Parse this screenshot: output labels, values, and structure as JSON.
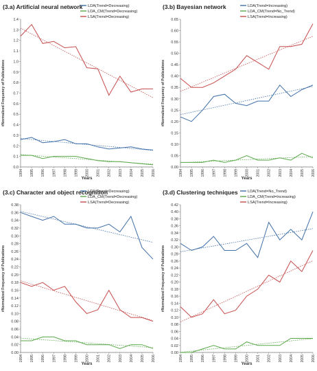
{
  "chart_data": [
    {
      "type": "line",
      "title": "(3.a) Artificial neural network",
      "xlabel": "Years",
      "ylabel": "#Normalized Frequency of Publications",
      "x": [
        "1994",
        "1995",
        "1996",
        "1997",
        "1998",
        "1999",
        "2000",
        "2001",
        "2002",
        "2003",
        "2004",
        "2005",
        "2006"
      ],
      "ylim": [
        0,
        1.4
      ],
      "yticks": [
        "0.0",
        "0.1",
        "0.2",
        "0.3",
        "0.4",
        "0.5",
        "0.6",
        "0.7",
        "0.8",
        "0.9",
        "1.0",
        "1.1",
        "1.2",
        "1.3",
        "1.4"
      ],
      "legend_position": "top-right",
      "trendlines": true,
      "series": [
        {
          "name": "LDA(Trend=Decreasing)",
          "color": "#3f6fa8",
          "values": [
            0.26,
            0.28,
            0.23,
            0.24,
            0.26,
            0.22,
            0.22,
            0.19,
            0.17,
            0.18,
            0.19,
            0.17,
            0.16
          ]
        },
        {
          "name": "LDA_CM(Trend=Decreasing)",
          "color": "#5aa84a",
          "values": [
            0.11,
            0.11,
            0.08,
            0.1,
            0.1,
            0.1,
            0.08,
            0.06,
            0.05,
            0.05,
            0.04,
            0.03,
            0.02
          ]
        },
        {
          "name": "LSA(Trend=Decreasing)",
          "color": "#c64b4b",
          "values": [
            1.24,
            1.35,
            1.17,
            1.19,
            1.13,
            1.14,
            0.94,
            0.93,
            0.68,
            0.86,
            0.71,
            0.74,
            0.74
          ]
        }
      ]
    },
    {
      "type": "line",
      "title": "(3.b) Bayesian network",
      "xlabel": "Years",
      "ylabel": "#Normalized Frequency of Publications",
      "x": [
        "1994",
        "1995",
        "1996",
        "1997",
        "1998",
        "1999",
        "2000",
        "2001",
        "2002",
        "2003",
        "2004",
        "2005",
        "2006"
      ],
      "ylim": [
        0,
        0.65
      ],
      "yticks": [
        "0.00",
        "0.05",
        "0.10",
        "0.15",
        "0.20",
        "0.25",
        "0.30",
        "0.35",
        "0.40",
        "0.45",
        "0.50",
        "0.55",
        "0.60",
        "0.65"
      ],
      "legend_position": "top-right",
      "trendlines": true,
      "series": [
        {
          "name": "LDA(Trend=Increasing)",
          "color": "#3f6fa8",
          "values": [
            0.22,
            0.2,
            0.25,
            0.31,
            0.32,
            0.28,
            0.27,
            0.29,
            0.29,
            0.36,
            0.31,
            0.34,
            0.36
          ]
        },
        {
          "name": "LDA_CM(Trend=No_Trend)",
          "color": "#5aa84a",
          "values": [
            0.02,
            0.02,
            0.02,
            0.03,
            0.02,
            0.03,
            0.05,
            0.03,
            0.03,
            0.04,
            0.03,
            0.06,
            0.04
          ]
        },
        {
          "name": "LSA(Trend=Increasing)",
          "color": "#c64b4b",
          "values": [
            0.39,
            0.35,
            0.35,
            0.37,
            0.4,
            0.43,
            0.49,
            0.46,
            0.43,
            0.53,
            0.53,
            0.54,
            0.63
          ]
        }
      ]
    },
    {
      "type": "line",
      "title": "(3.c) Character and object recognition",
      "xlabel": "Years",
      "ylabel": "#Normalized Frequency of Publications",
      "x": [
        "1994",
        "1995",
        "1996",
        "1997",
        "1998",
        "1999",
        "2000",
        "2001",
        "2002",
        "2003",
        "2004",
        "2005",
        "2006"
      ],
      "ylim": [
        0,
        0.38
      ],
      "yticks": [
        "0.00",
        "0.02",
        "0.04",
        "0.06",
        "0.08",
        "0.10",
        "0.12",
        "0.14",
        "0.16",
        "0.18",
        "0.20",
        "0.22",
        "0.24",
        "0.26",
        "0.28",
        "0.30",
        "0.32",
        "0.34",
        "0.36",
        "0.38"
      ],
      "legend_position": "top-right",
      "trendlines": true,
      "series": [
        {
          "name": "LDA(Trend=Decreasing)",
          "color": "#3f6fa8",
          "values": [
            0.36,
            0.35,
            0.34,
            0.35,
            0.33,
            0.33,
            0.32,
            0.32,
            0.33,
            0.31,
            0.35,
            0.27,
            0.24
          ]
        },
        {
          "name": "LDA_CM(Trend=Decreasing)",
          "color": "#5aa84a",
          "values": [
            0.03,
            0.03,
            0.04,
            0.04,
            0.03,
            0.03,
            0.02,
            0.02,
            0.02,
            0.01,
            0.02,
            0.02,
            0.01
          ]
        },
        {
          "name": "LSA(Trend=Decreasing)",
          "color": "#c64b4b",
          "values": [
            0.18,
            0.17,
            0.18,
            0.16,
            0.17,
            0.13,
            0.1,
            0.11,
            0.16,
            0.11,
            0.09,
            0.09,
            0.08
          ]
        }
      ]
    },
    {
      "type": "line",
      "title": "(3.d) Clustering techniques",
      "xlabel": "Years",
      "ylabel": "#Normalized Frequency of Publications",
      "x": [
        "1994",
        "1995",
        "1996",
        "1997",
        "1998",
        "1999",
        "2000",
        "2001",
        "2002",
        "2003",
        "2004",
        "2005",
        "2006"
      ],
      "ylim": [
        0,
        0.42
      ],
      "yticks": [
        "0.00",
        "0.02",
        "0.04",
        "0.06",
        "0.08",
        "0.10",
        "0.12",
        "0.14",
        "0.16",
        "0.18",
        "0.20",
        "0.22",
        "0.24",
        "0.26",
        "0.28",
        "0.30",
        "0.32",
        "0.34",
        "0.36",
        "0.38",
        "0.40",
        "0.42"
      ],
      "legend_position": "top-right",
      "trendlines": true,
      "series": [
        {
          "name": "LDA(Trend=No_Trend)",
          "color": "#3f6fa8",
          "values": [
            0.31,
            0.29,
            0.3,
            0.33,
            0.29,
            0.29,
            0.31,
            0.27,
            0.37,
            0.32,
            0.35,
            0.32,
            0.4
          ]
        },
        {
          "name": "LDA_CM(Trend=Increasing)",
          "color": "#5aa84a",
          "values": [
            0.0,
            0.0,
            0.01,
            0.02,
            0.01,
            0.01,
            0.03,
            0.02,
            0.02,
            0.02,
            0.04,
            0.04,
            0.04
          ]
        },
        {
          "name": "LSA(Trend=Increasing)",
          "color": "#c64b4b",
          "values": [
            0.13,
            0.1,
            0.11,
            0.15,
            0.11,
            0.12,
            0.16,
            0.18,
            0.22,
            0.2,
            0.26,
            0.23,
            0.29
          ]
        }
      ]
    }
  ]
}
